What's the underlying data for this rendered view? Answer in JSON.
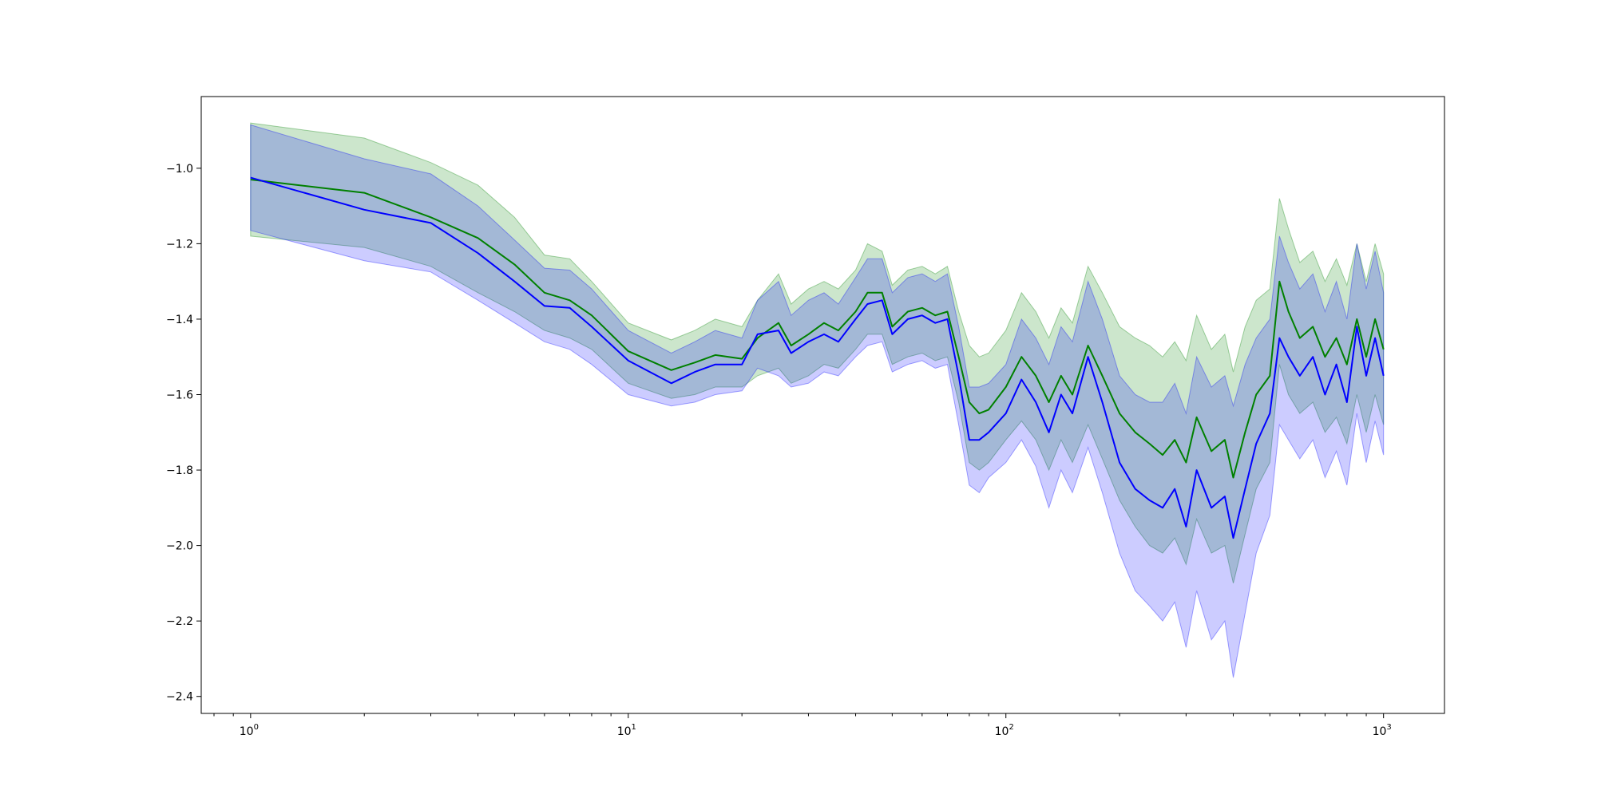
{
  "chart_data": {
    "type": "line",
    "title": "",
    "xlabel": "",
    "ylabel": "",
    "xscale": "log",
    "xlim": [
      0.74,
      1450
    ],
    "ylim": [
      -2.445,
      -0.81
    ],
    "grid": false,
    "legend": "none",
    "x_ticks": [
      {
        "base": "10",
        "exp": "0",
        "value": 1
      },
      {
        "base": "10",
        "exp": "1",
        "value": 10
      },
      {
        "base": "10",
        "exp": "2",
        "value": 100
      },
      {
        "base": "10",
        "exp": "3",
        "value": 1000
      }
    ],
    "y_ticks": [
      {
        "label": "−1.0",
        "value": -1.0
      },
      {
        "label": "−1.2",
        "value": -1.2
      },
      {
        "label": "−1.4",
        "value": -1.4
      },
      {
        "label": "−1.6",
        "value": -1.6
      },
      {
        "label": "−1.8",
        "value": -1.8
      },
      {
        "label": "−2.0",
        "value": -2.0
      },
      {
        "label": "−2.2",
        "value": -2.2
      },
      {
        "label": "−2.4",
        "value": -2.4
      }
    ],
    "series": [
      {
        "color": "#008000",
        "band_color": "#008000",
        "band_opacity": 0.2,
        "x": [
          1,
          2,
          3,
          4,
          5,
          6,
          7,
          8,
          10,
          13,
          15,
          17,
          20,
          22,
          25,
          27,
          30,
          33,
          36,
          40,
          43,
          47,
          50,
          55,
          60,
          65,
          70,
          75,
          80,
          85,
          90,
          100,
          110,
          120,
          130,
          140,
          150,
          165,
          180,
          200,
          220,
          240,
          260,
          280,
          300,
          320,
          350,
          380,
          400,
          430,
          460,
          500,
          530,
          560,
          600,
          650,
          700,
          750,
          800,
          850,
          900,
          950,
          1000
        ],
        "y": [
          -1.03,
          -1.065,
          -1.13,
          -1.185,
          -1.255,
          -1.33,
          -1.35,
          -1.39,
          -1.485,
          -1.535,
          -1.515,
          -1.495,
          -1.505,
          -1.45,
          -1.41,
          -1.47,
          -1.44,
          -1.41,
          -1.43,
          -1.38,
          -1.33,
          -1.33,
          -1.42,
          -1.38,
          -1.37,
          -1.39,
          -1.38,
          -1.5,
          -1.62,
          -1.65,
          -1.64,
          -1.58,
          -1.5,
          -1.55,
          -1.62,
          -1.55,
          -1.6,
          -1.47,
          -1.55,
          -1.65,
          -1.7,
          -1.73,
          -1.76,
          -1.72,
          -1.78,
          -1.66,
          -1.75,
          -1.72,
          -1.82,
          -1.7,
          -1.6,
          -1.55,
          -1.3,
          -1.38,
          -1.45,
          -1.42,
          -1.5,
          -1.45,
          -1.52,
          -1.4,
          -1.5,
          -1.4,
          -1.48
        ],
        "lower": [
          -1.18,
          -1.21,
          -1.26,
          -1.33,
          -1.38,
          -1.43,
          -1.45,
          -1.48,
          -1.57,
          -1.61,
          -1.6,
          -1.58,
          -1.58,
          -1.55,
          -1.53,
          -1.57,
          -1.55,
          -1.52,
          -1.53,
          -1.48,
          -1.44,
          -1.44,
          -1.52,
          -1.5,
          -1.49,
          -1.51,
          -1.5,
          -1.62,
          -1.78,
          -1.8,
          -1.78,
          -1.72,
          -1.67,
          -1.72,
          -1.8,
          -1.72,
          -1.78,
          -1.68,
          -1.77,
          -1.88,
          -1.95,
          -2.0,
          -2.02,
          -1.98,
          -2.05,
          -1.93,
          -2.02,
          -2.0,
          -2.1,
          -1.97,
          -1.85,
          -1.78,
          -1.52,
          -1.6,
          -1.65,
          -1.62,
          -1.7,
          -1.66,
          -1.73,
          -1.6,
          -1.7,
          -1.6,
          -1.68
        ],
        "upper": [
          -0.88,
          -0.92,
          -0.985,
          -1.045,
          -1.13,
          -1.23,
          -1.24,
          -1.3,
          -1.41,
          -1.455,
          -1.43,
          -1.4,
          -1.42,
          -1.35,
          -1.28,
          -1.36,
          -1.32,
          -1.3,
          -1.32,
          -1.27,
          -1.2,
          -1.22,
          -1.31,
          -1.27,
          -1.26,
          -1.28,
          -1.26,
          -1.38,
          -1.47,
          -1.5,
          -1.49,
          -1.43,
          -1.33,
          -1.38,
          -1.45,
          -1.37,
          -1.41,
          -1.26,
          -1.33,
          -1.42,
          -1.45,
          -1.47,
          -1.5,
          -1.46,
          -1.51,
          -1.39,
          -1.48,
          -1.44,
          -1.54,
          -1.42,
          -1.35,
          -1.32,
          -1.08,
          -1.16,
          -1.25,
          -1.22,
          -1.3,
          -1.24,
          -1.31,
          -1.2,
          -1.3,
          -1.2,
          -1.28
        ]
      },
      {
        "color": "#0000ff",
        "band_color": "#0000ff",
        "band_opacity": 0.2,
        "x": [
          1,
          2,
          3,
          4,
          5,
          6,
          7,
          8,
          10,
          13,
          15,
          17,
          20,
          22,
          25,
          27,
          30,
          33,
          36,
          40,
          43,
          47,
          50,
          55,
          60,
          65,
          70,
          75,
          80,
          85,
          90,
          100,
          110,
          120,
          130,
          140,
          150,
          165,
          180,
          200,
          220,
          240,
          260,
          280,
          300,
          320,
          350,
          380,
          400,
          430,
          460,
          500,
          530,
          560,
          600,
          650,
          700,
          750,
          800,
          850,
          900,
          950,
          1000
        ],
        "y": [
          -1.025,
          -1.11,
          -1.145,
          -1.225,
          -1.3,
          -1.365,
          -1.37,
          -1.42,
          -1.51,
          -1.57,
          -1.54,
          -1.52,
          -1.52,
          -1.44,
          -1.43,
          -1.49,
          -1.46,
          -1.44,
          -1.46,
          -1.4,
          -1.36,
          -1.35,
          -1.44,
          -1.4,
          -1.39,
          -1.41,
          -1.4,
          -1.55,
          -1.72,
          -1.72,
          -1.7,
          -1.65,
          -1.56,
          -1.62,
          -1.7,
          -1.6,
          -1.65,
          -1.5,
          -1.62,
          -1.78,
          -1.85,
          -1.88,
          -1.9,
          -1.85,
          -1.95,
          -1.8,
          -1.9,
          -1.87,
          -1.98,
          -1.85,
          -1.73,
          -1.65,
          -1.45,
          -1.5,
          -1.55,
          -1.5,
          -1.6,
          -1.52,
          -1.62,
          -1.42,
          -1.55,
          -1.45,
          -1.55
        ],
        "lower": [
          -1.165,
          -1.245,
          -1.275,
          -1.35,
          -1.41,
          -1.46,
          -1.48,
          -1.52,
          -1.6,
          -1.63,
          -1.62,
          -1.6,
          -1.59,
          -1.53,
          -1.55,
          -1.58,
          -1.57,
          -1.54,
          -1.55,
          -1.5,
          -1.47,
          -1.46,
          -1.54,
          -1.52,
          -1.51,
          -1.53,
          -1.52,
          -1.68,
          -1.84,
          -1.86,
          -1.82,
          -1.78,
          -1.72,
          -1.79,
          -1.9,
          -1.8,
          -1.86,
          -1.74,
          -1.86,
          -2.02,
          -2.12,
          -2.16,
          -2.2,
          -2.15,
          -2.27,
          -2.12,
          -2.25,
          -2.2,
          -2.35,
          -2.18,
          -2.02,
          -1.92,
          -1.68,
          -1.72,
          -1.77,
          -1.72,
          -1.82,
          -1.75,
          -1.84,
          -1.65,
          -1.78,
          -1.67,
          -1.76
        ],
        "upper": [
          -0.885,
          -0.975,
          -1.015,
          -1.1,
          -1.19,
          -1.265,
          -1.27,
          -1.32,
          -1.43,
          -1.49,
          -1.46,
          -1.43,
          -1.45,
          -1.35,
          -1.3,
          -1.39,
          -1.35,
          -1.33,
          -1.36,
          -1.29,
          -1.24,
          -1.24,
          -1.33,
          -1.29,
          -1.28,
          -1.3,
          -1.28,
          -1.42,
          -1.58,
          -1.58,
          -1.57,
          -1.52,
          -1.4,
          -1.45,
          -1.52,
          -1.42,
          -1.46,
          -1.3,
          -1.4,
          -1.55,
          -1.6,
          -1.62,
          -1.62,
          -1.57,
          -1.65,
          -1.5,
          -1.58,
          -1.55,
          -1.63,
          -1.52,
          -1.45,
          -1.4,
          -1.18,
          -1.25,
          -1.32,
          -1.28,
          -1.38,
          -1.3,
          -1.4,
          -1.2,
          -1.32,
          -1.22,
          -1.33
        ]
      }
    ]
  }
}
